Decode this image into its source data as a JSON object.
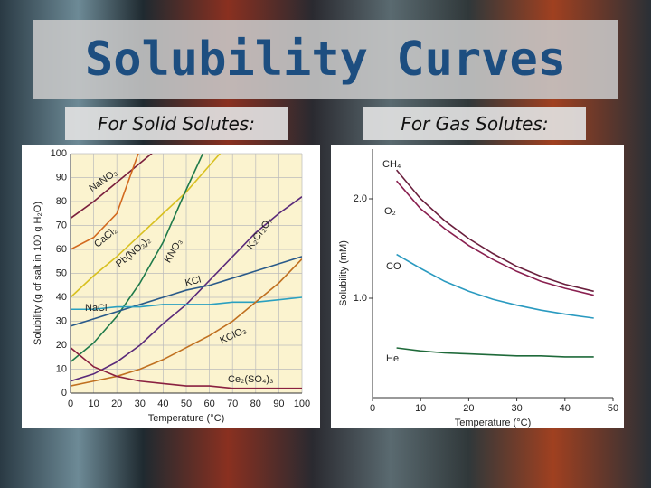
{
  "slide": {
    "title": "Solubility Curves"
  },
  "chart_data": [
    {
      "type": "line",
      "title": "For Solid Solutes:",
      "xlabel": "Temperature (°C)",
      "ylabel": "Solubility (g of salt in 100 g H₂O)",
      "x": [
        0,
        10,
        20,
        30,
        40,
        50,
        60,
        70,
        80,
        90,
        100
      ],
      "xlim": [
        0,
        100
      ],
      "ylim": [
        0,
        100
      ],
      "xticks": [
        0,
        10,
        20,
        30,
        40,
        50,
        60,
        70,
        80,
        90,
        100
      ],
      "yticks": [
        0,
        10,
        20,
        30,
        40,
        50,
        60,
        70,
        80,
        90,
        100
      ],
      "grid": true,
      "series": [
        {
          "name": "NaNO₃",
          "color": "#7a1f3d",
          "values": [
            73,
            80,
            88,
            96,
            104,
            null,
            null,
            null,
            null,
            null,
            null
          ]
        },
        {
          "name": "CaCl₂",
          "color": "#d2691e",
          "values": [
            60,
            65,
            75,
            102,
            null,
            null,
            null,
            null,
            null,
            null,
            null
          ]
        },
        {
          "name": "Pb(NO₃)₂",
          "color": "#d8c020",
          "values": [
            40,
            49,
            57,
            66,
            75,
            84,
            95,
            106,
            null,
            null,
            null
          ]
        },
        {
          "name": "KNO₃",
          "color": "#1f7a4a",
          "values": [
            13,
            21,
            32,
            46,
            63,
            85,
            106,
            null,
            null,
            null,
            null
          ]
        },
        {
          "name": "K₂Cr₂O₇",
          "color": "#5a2a7a",
          "values": [
            5,
            8,
            13,
            20,
            29,
            37,
            47,
            57,
            67,
            75,
            82
          ]
        },
        {
          "name": "KCl",
          "color": "#2a5a8a",
          "values": [
            28,
            31,
            34,
            37,
            40,
            43,
            45,
            48,
            51,
            54,
            57
          ]
        },
        {
          "name": "NaCl",
          "color": "#2aa0c0",
          "values": [
            35,
            35,
            36,
            36,
            37,
            37,
            37,
            38,
            38,
            39,
            40
          ]
        },
        {
          "name": "KClO₃",
          "color": "#c07020",
          "values": [
            3,
            5,
            7,
            10,
            14,
            19,
            24,
            30,
            38,
            46,
            56
          ]
        },
        {
          "name": "Ce₂(SO₄)₃",
          "color": "#8a2040",
          "values": [
            19,
            11,
            7,
            5,
            4,
            3,
            3,
            2,
            2,
            2,
            2
          ]
        }
      ]
    },
    {
      "type": "line",
      "title": "For Gas Solutes:",
      "xlabel": "Temperature (°C)",
      "ylabel": "Solubility (mM)",
      "x": [
        5,
        10,
        15,
        20,
        25,
        30,
        35,
        40,
        46
      ],
      "xlim": [
        0,
        50
      ],
      "ylim": [
        0,
        2.5
      ],
      "xticks": [
        0,
        10,
        20,
        30,
        40,
        50
      ],
      "yticks": [
        {
          "value": 1,
          "label": "1.0"
        },
        {
          "value": 2,
          "label": "2.0"
        }
      ],
      "grid": false,
      "series": [
        {
          "name": "CH₄",
          "color": "#6a1f3d",
          "values": [
            2.29,
            2.0,
            1.78,
            1.6,
            1.45,
            1.32,
            1.22,
            1.14,
            1.07
          ]
        },
        {
          "name": "O₂",
          "color": "#8a2050",
          "values": [
            2.18,
            1.9,
            1.7,
            1.53,
            1.39,
            1.27,
            1.17,
            1.1,
            1.03
          ]
        },
        {
          "name": "CO",
          "color": "#2a9ac0",
          "values": [
            1.44,
            1.3,
            1.17,
            1.07,
            0.99,
            0.93,
            0.88,
            0.84,
            0.8
          ]
        },
        {
          "name": "He",
          "color": "#1f6a3a",
          "values": [
            0.5,
            0.47,
            0.45,
            0.44,
            0.43,
            0.42,
            0.42,
            0.41,
            0.41
          ]
        }
      ]
    }
  ]
}
